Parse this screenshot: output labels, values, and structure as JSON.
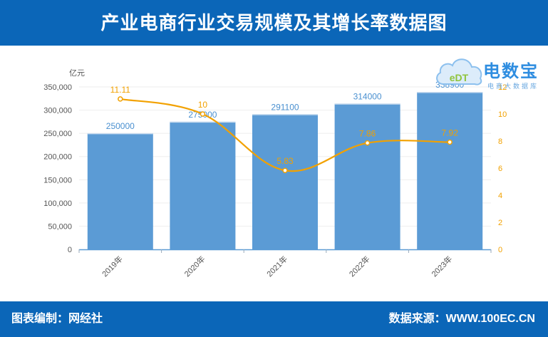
{
  "header": {
    "title": "产业电商行业交易规模及其增长率数据图"
  },
  "footer": {
    "editor": "图表编制：网经社",
    "source": "数据来源：WWW.100EC.CN"
  },
  "logo": {
    "name": "电数宝",
    "sub": "电商大数据库",
    "cloud_text": "eDT"
  },
  "colors": {
    "bar": "#5b9bd5",
    "line": "#f2a100",
    "header_bg": "#0b66b8"
  },
  "chart_data": {
    "type": "bar",
    "categories": [
      "2019年",
      "2020年",
      "2021年",
      "2022年",
      "2023年"
    ],
    "series": [
      {
        "values": [
          250000,
          275000,
          291100,
          314000,
          338900
        ],
        "axis": "left",
        "type": "bar",
        "labels": [
          "250000",
          "275000",
          "291100",
          "314000",
          "338900"
        ]
      },
      {
        "values": [
          11.11,
          10,
          5.83,
          7.86,
          7.92
        ],
        "axis": "right",
        "type": "line",
        "labels": [
          "11.11",
          "10",
          "5.83",
          "7.86",
          "7.92"
        ]
      }
    ],
    "ylabel": "亿元",
    "ylim": [
      0,
      350000
    ],
    "y_ticks": [
      "0",
      "50,000",
      "100,000",
      "150,000",
      "200,000",
      "250,000",
      "300,000",
      "350,000"
    ],
    "y2lim": [
      0,
      12
    ],
    "y2_ticks": [
      "0",
      "2",
      "4",
      "6",
      "8",
      "10",
      "12"
    ],
    "grid": true,
    "legend": "none"
  }
}
